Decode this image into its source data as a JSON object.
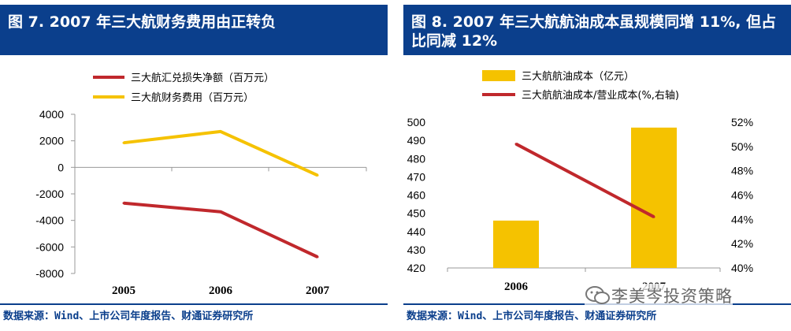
{
  "left": {
    "title": "图 7. 2007 年三大航财务费用由正转负",
    "source": "数据来源：Wind、上市公司年度报告、财通证券研究所"
  },
  "right": {
    "title": "图 8. 2007 年三大航航油成本虽规模同增 11%, 但占比同减 12%",
    "source": "数据来源：Wind、上市公司年度报告、财通证券研究所"
  },
  "watermark": "李美岑投资策略",
  "colors": {
    "header": "#0b3f8c",
    "red": "#c0282c",
    "yellow": "#f5c200"
  },
  "chart_data": [
    {
      "type": "line",
      "categories": [
        "2005",
        "2006",
        "2007"
      ],
      "series": [
        {
          "name": "三大航汇兑损失净额（百万元）",
          "values": [
            -2700,
            -3350,
            -6750
          ],
          "color": "#c0282c"
        },
        {
          "name": "三大航财务费用（百万元）",
          "values": [
            1850,
            2700,
            -600
          ],
          "color": "#f5c200"
        }
      ],
      "ylim": [
        -8000,
        4000
      ],
      "yticks": [
        4000,
        2000,
        0,
        -2000,
        -4000,
        -6000,
        -8000
      ],
      "ytick_labels": [
        "4000",
        "2000",
        "0",
        "-2000",
        "-4000",
        "-6000",
        "-8000"
      ],
      "grid": false
    },
    {
      "type": "bar+line",
      "categories": [
        "2006",
        "2007"
      ],
      "bar_series": {
        "name": "三大航航油成本（亿元）",
        "values": [
          446,
          497
        ],
        "color": "#f5c200",
        "ylim": [
          420,
          500
        ]
      },
      "line_series": {
        "name": "三大航航油成本/营业成本(%,右轴)",
        "values": [
          50.2,
          44.2
        ],
        "color": "#c0282c",
        "ylim": [
          40,
          52
        ]
      },
      "yticks_left": [
        500,
        490,
        480,
        470,
        460,
        450,
        440,
        430,
        420
      ],
      "ytick_labels_left": [
        "500",
        "490",
        "480",
        "470",
        "460",
        "450",
        "440",
        "430",
        "420"
      ],
      "yticks_right": [
        52,
        50,
        48,
        46,
        44,
        42,
        40
      ],
      "ytick_labels_right": [
        "52%",
        "50%",
        "48%",
        "46%",
        "44%",
        "42%",
        "40%"
      ]
    }
  ]
}
